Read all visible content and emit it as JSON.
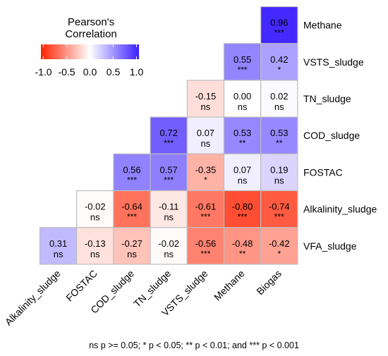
{
  "chart_data": {
    "type": "heatmap",
    "legend": {
      "title_line1": "Pearson's",
      "title_line2": "Correlation",
      "ticks": [
        "-1.0",
        "-0.5",
        "0.0",
        "0.5",
        "1.0"
      ],
      "range": [
        -1,
        1
      ],
      "low_color": "#ff2200",
      "mid_color": "#ffffff",
      "high_color": "#3b1fff"
    },
    "x_labels": [
      "Alkalinity_sludge",
      "FOSTAC",
      "COD_sludge",
      "TN_sludge",
      "VSTS_sludge",
      "Methane",
      "Biogas"
    ],
    "y_labels": [
      "Methane",
      "VSTS_sludge",
      "TN_sludge",
      "COD_sludge",
      "FOSTAC",
      "Alkalinity_sludge",
      "VFA_sludge"
    ],
    "cells": [
      {
        "row": 0,
        "col": 6,
        "value": 0.96,
        "text": "0.96",
        "sig": "***"
      },
      {
        "row": 1,
        "col": 5,
        "value": 0.55,
        "text": "0.55",
        "sig": "***"
      },
      {
        "row": 1,
        "col": 6,
        "value": 0.42,
        "text": "0.42",
        "sig": "*"
      },
      {
        "row": 2,
        "col": 4,
        "value": -0.15,
        "text": "-0.15",
        "sig": "ns"
      },
      {
        "row": 2,
        "col": 5,
        "value": 0.0,
        "text": "0.00",
        "sig": "ns"
      },
      {
        "row": 2,
        "col": 6,
        "value": 0.02,
        "text": "0.02",
        "sig": "ns"
      },
      {
        "row": 3,
        "col": 3,
        "value": 0.72,
        "text": "0.72",
        "sig": "***"
      },
      {
        "row": 3,
        "col": 4,
        "value": 0.07,
        "text": "0.07",
        "sig": "ns"
      },
      {
        "row": 3,
        "col": 5,
        "value": 0.53,
        "text": "0.53",
        "sig": "**"
      },
      {
        "row": 3,
        "col": 6,
        "value": 0.53,
        "text": "0.53",
        "sig": "**"
      },
      {
        "row": 4,
        "col": 2,
        "value": 0.56,
        "text": "0.56",
        "sig": "***"
      },
      {
        "row": 4,
        "col": 3,
        "value": 0.57,
        "text": "0.57",
        "sig": "***"
      },
      {
        "row": 4,
        "col": 4,
        "value": -0.35,
        "text": "-0.35",
        "sig": "*"
      },
      {
        "row": 4,
        "col": 5,
        "value": 0.07,
        "text": "0.07",
        "sig": "ns"
      },
      {
        "row": 4,
        "col": 6,
        "value": 0.19,
        "text": "0.19",
        "sig": "ns"
      },
      {
        "row": 5,
        "col": 1,
        "value": -0.02,
        "text": "-0.02",
        "sig": "ns"
      },
      {
        "row": 5,
        "col": 2,
        "value": -0.64,
        "text": "-0.64",
        "sig": "***"
      },
      {
        "row": 5,
        "col": 3,
        "value": -0.11,
        "text": "-0.11",
        "sig": "ns"
      },
      {
        "row": 5,
        "col": 4,
        "value": -0.61,
        "text": "-0.61",
        "sig": "***"
      },
      {
        "row": 5,
        "col": 5,
        "value": -0.8,
        "text": "-0.80",
        "sig": "***"
      },
      {
        "row": 5,
        "col": 6,
        "value": -0.74,
        "text": "-0.74",
        "sig": "***"
      },
      {
        "row": 6,
        "col": 0,
        "value": 0.31,
        "text": "0.31",
        "sig": "ns"
      },
      {
        "row": 6,
        "col": 1,
        "value": -0.13,
        "text": "-0.13",
        "sig": "ns"
      },
      {
        "row": 6,
        "col": 2,
        "value": -0.27,
        "text": "-0.27",
        "sig": "ns"
      },
      {
        "row": 6,
        "col": 3,
        "value": -0.02,
        "text": "-0.02",
        "sig": "ns"
      },
      {
        "row": 6,
        "col": 4,
        "value": -0.56,
        "text": "-0.56",
        "sig": "***"
      },
      {
        "row": 6,
        "col": 5,
        "value": -0.48,
        "text": "-0.48",
        "sig": "**"
      },
      {
        "row": 6,
        "col": 6,
        "value": -0.42,
        "text": "-0.42",
        "sig": "*"
      }
    ],
    "footnote": "ns p >= 0.05; * p < 0.05; ** p < 0.01; and *** p < 0.001"
  }
}
